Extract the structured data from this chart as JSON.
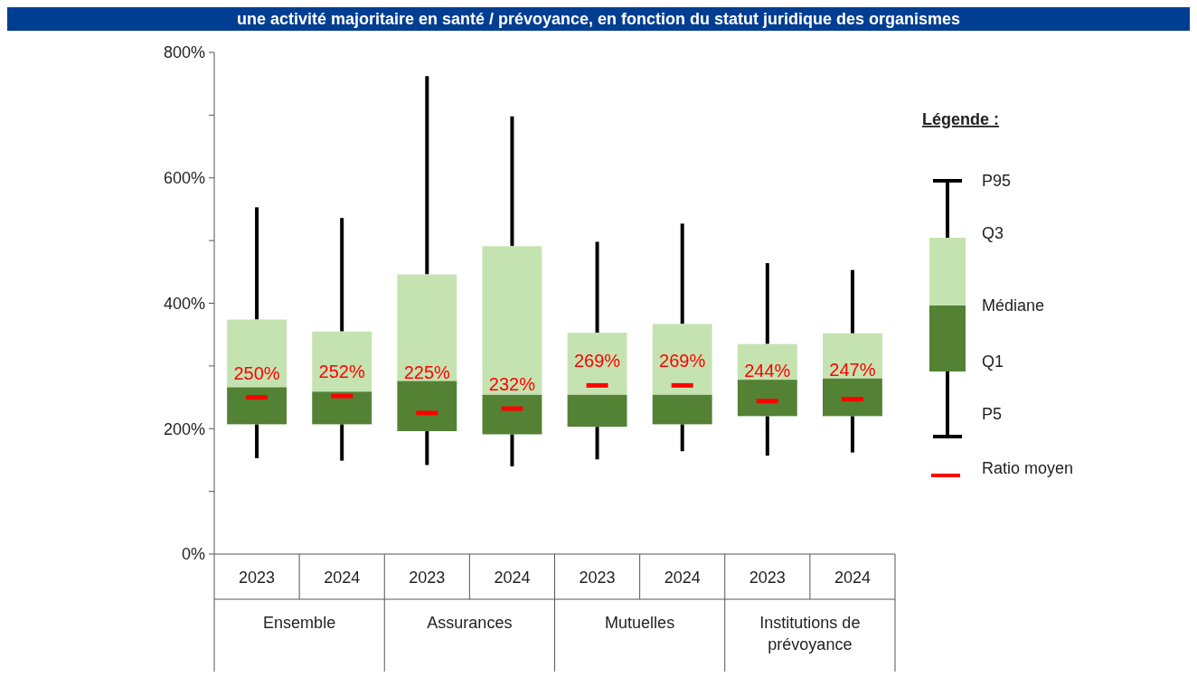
{
  "chart_data": {
    "type": "box",
    "title": "une activité majoritaire en santé / prévoyance, en fonction du statut juridique des organismes",
    "categories": [
      "2023",
      "2024",
      "2023",
      "2024",
      "2023",
      "2024",
      "2023",
      "2024"
    ],
    "series": [
      {
        "color": "#548235",
        "value_labels": [
          "250%",
          "252%",
          "225%",
          "232%",
          "269%",
          "269%",
          "244%",
          "247%"
        ],
        "boxes": [
          {
            "low": 153,
            "q1": 207,
            "median": 266,
            "q3": 374,
            "high": 553,
            "mean": 250
          },
          {
            "low": 149,
            "q1": 207,
            "median": 259,
            "q3": 355,
            "high": 536,
            "mean": 252
          },
          {
            "low": 142,
            "q1": 196,
            "median": 276,
            "q3": 446,
            "high": 762,
            "mean": 225
          },
          {
            "low": 140,
            "q1": 191,
            "median": 254,
            "q3": 491,
            "high": 698,
            "mean": 232
          },
          {
            "low": 151,
            "q1": 203,
            "median": 254,
            "q3": 353,
            "high": 498,
            "mean": 269
          },
          {
            "low": 164,
            "q1": 207,
            "median": 254,
            "q3": 367,
            "high": 527,
            "mean": 269
          },
          {
            "low": 157,
            "q1": 220,
            "median": 278,
            "q3": 335,
            "high": 464,
            "mean": 244
          },
          {
            "low": 162,
            "q1": 220,
            "median": 280,
            "q3": 352,
            "high": 453,
            "mean": 247
          }
        ]
      }
    ],
    "ylim": [
      0,
      800
    ],
    "yticks": [
      {
        "value": 0,
        "label": "0%"
      },
      {
        "value": 100,
        "label": null
      },
      {
        "value": 200,
        "label": "200%"
      },
      {
        "value": 300,
        "label": null
      },
      {
        "value": 400,
        "label": "400%"
      },
      {
        "value": 500,
        "label": null
      },
      {
        "value": 600,
        "label": "600%"
      },
      {
        "value": 700,
        "label": null
      },
      {
        "value": 800,
        "label": "800%"
      }
    ],
    "legend_title": "Légende :",
    "annotations": [
      "Ensemble",
      "Assurances",
      "Mutuelles",
      "Institutions de prévoyance",
      "P95",
      "Q3",
      "Médiane",
      "Q1",
      "P5",
      "Ratio moyen"
    ]
  }
}
